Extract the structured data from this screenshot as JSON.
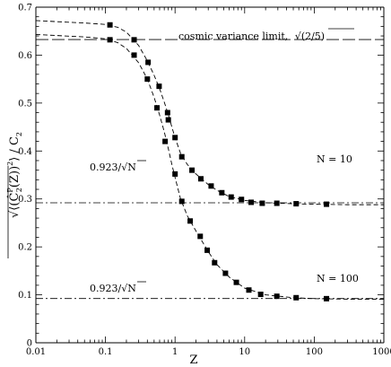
{
  "chart_data": {
    "type": "scatter",
    "title": "",
    "xlabel": "Z",
    "ylabel_parts": {
      "sqrt": "√",
      "inner": "⟨(Ĉ",
      "sup": "P",
      "sub1": "2",
      "mid": "(Z))",
      "sup2": "2",
      "end": "⟩",
      "ratio": " / C",
      "sub2": "2"
    },
    "xscale": "log",
    "xlim": [
      0.01,
      1000
    ],
    "ylim": [
      0,
      0.7
    ],
    "x_ticks": [
      "0.01",
      "0.1",
      "1",
      "10",
      "100",
      "1000"
    ],
    "y_ticks": [
      "0",
      "0.1",
      "0.2",
      "0.3",
      "0.4",
      "0.5",
      "0.6",
      "0.7"
    ],
    "grid": false,
    "reference_lines": [
      {
        "name": "cosmic-variance-limit",
        "y": 0.6325,
        "style": "long-dash"
      },
      {
        "name": "n10-limit",
        "y": 0.292,
        "style": "dash-dot"
      },
      {
        "name": "n100-limit",
        "y": 0.0923,
        "style": "dash-dot"
      }
    ],
    "annotations": {
      "cosmic_variance": "cosmic variance limit,",
      "cosmic_variance_sqrt": "√",
      "cosmic_variance_expr": "(2/5)",
      "n10": "N = 10",
      "n100": "N = 100",
      "n10_limit_prefix": "0.923/",
      "n10_limit_sqrt": "√",
      "n10_limit_var": "N",
      "n100_limit_prefix": "0.923/",
      "n100_limit_sqrt": "√",
      "n100_limit_var": "N"
    },
    "series": [
      {
        "name": "N = 10",
        "points": [
          [
            0.116,
            0.663
          ],
          [
            0.258,
            0.632
          ],
          [
            0.41,
            0.585
          ],
          [
            0.59,
            0.535
          ],
          [
            0.78,
            0.48
          ],
          [
            1.0,
            0.428
          ],
          [
            1.25,
            0.388
          ],
          [
            1.75,
            0.36
          ],
          [
            2.35,
            0.342
          ],
          [
            3.3,
            0.327
          ],
          [
            4.7,
            0.313
          ],
          [
            6.4,
            0.304
          ],
          [
            9.0,
            0.299
          ],
          [
            12.4,
            0.293
          ],
          [
            17.9,
            0.291
          ],
          [
            29.0,
            0.291
          ],
          [
            55.0,
            0.29
          ],
          [
            150.0,
            0.289
          ]
        ],
        "curve": [
          [
            0.01,
            0.672
          ],
          [
            0.05,
            0.667
          ],
          [
            0.1,
            0.664
          ],
          [
            0.15,
            0.658
          ],
          [
            0.2,
            0.648
          ],
          [
            0.3,
            0.62
          ],
          [
            0.4,
            0.588
          ],
          [
            0.5,
            0.558
          ],
          [
            0.6,
            0.53
          ],
          [
            0.7,
            0.502
          ],
          [
            0.8,
            0.476
          ],
          [
            0.9,
            0.45
          ],
          [
            1.0,
            0.428
          ],
          [
            1.2,
            0.395
          ],
          [
            1.5,
            0.372
          ],
          [
            2.0,
            0.352
          ],
          [
            3.0,
            0.33
          ],
          [
            4.0,
            0.318
          ],
          [
            6.0,
            0.305
          ],
          [
            10.0,
            0.297
          ],
          [
            20.0,
            0.292
          ],
          [
            50.0,
            0.29
          ],
          [
            100.0,
            0.289
          ],
          [
            300.0,
            0.288
          ],
          [
            1000.0,
            0.288
          ]
        ]
      },
      {
        "name": "N = 100",
        "points": [
          [
            0.116,
            0.632
          ],
          [
            0.258,
            0.6
          ],
          [
            0.4,
            0.55
          ],
          [
            0.55,
            0.49
          ],
          [
            0.72,
            0.42
          ],
          [
            0.8,
            0.465
          ],
          [
            1.0,
            0.352
          ],
          [
            1.25,
            0.295
          ],
          [
            1.65,
            0.254
          ],
          [
            2.3,
            0.222
          ],
          [
            2.9,
            0.193
          ],
          [
            3.7,
            0.167
          ],
          [
            5.3,
            0.145
          ],
          [
            7.6,
            0.126
          ],
          [
            11.5,
            0.11
          ],
          [
            17.0,
            0.101
          ],
          [
            29.0,
            0.097
          ],
          [
            55.0,
            0.094
          ],
          [
            150.0,
            0.092
          ]
        ],
        "curve": [
          [
            0.01,
            0.643
          ],
          [
            0.05,
            0.638
          ],
          [
            0.1,
            0.634
          ],
          [
            0.15,
            0.626
          ],
          [
            0.2,
            0.614
          ],
          [
            0.3,
            0.584
          ],
          [
            0.4,
            0.55
          ],
          [
            0.5,
            0.512
          ],
          [
            0.6,
            0.475
          ],
          [
            0.7,
            0.44
          ],
          [
            0.8,
            0.405
          ],
          [
            0.9,
            0.372
          ],
          [
            1.0,
            0.345
          ],
          [
            1.2,
            0.3
          ],
          [
            1.5,
            0.265
          ],
          [
            2.0,
            0.233
          ],
          [
            3.0,
            0.19
          ],
          [
            4.0,
            0.163
          ],
          [
            6.0,
            0.137
          ],
          [
            10.0,
            0.114
          ],
          [
            20.0,
            0.1
          ],
          [
            50.0,
            0.094
          ],
          [
            100.0,
            0.092
          ],
          [
            300.0,
            0.091
          ],
          [
            1000.0,
            0.091
          ]
        ]
      }
    ]
  }
}
